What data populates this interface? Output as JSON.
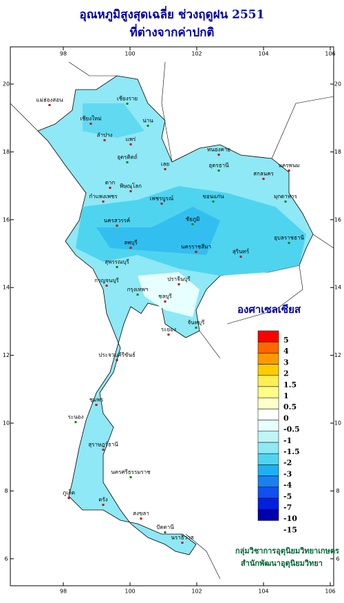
{
  "title": [
    "อุณหภูมิสูงสุดเฉลี่ย ช่วงฤดูฝน 2551",
    "ที่ต่างจากค่าปกติ"
  ],
  "map": {
    "lon_ticks": [
      98,
      100,
      102,
      104,
      106
    ],
    "lat_ticks": [
      20,
      18,
      16,
      14,
      12,
      10,
      8,
      6
    ],
    "places": [
      "เชียงราย",
      "แม่ฮ่องสอน",
      "เชียงใหม่",
      "น่าน",
      "ลำปาง",
      "แพร่",
      "อุตรดิตถ์",
      "เลย",
      "หนองคาย",
      "อุดรธานี",
      "นครพนม",
      "สกลนคร",
      "มุกดาหาร",
      "ตาก",
      "พิษณุโลก",
      "ขอนแก่น",
      "กำแพงเพชร",
      "เพชรบูรณ์",
      "ชัยภูมิ",
      "นครสวรรค์",
      "นครราชสีมา",
      "อุบลราชธานี",
      "สุรินทร์",
      "ลพบุรี",
      "สุพรรณบุรี",
      "กาญจนบุรี",
      "ปราจีนบุรี",
      "กรุงเทพฯ",
      "ชลบุรี",
      "ระยอง",
      "จันทบุรี",
      "ประจวบคีรีขันธ์",
      "ชุมพร",
      "ระนอง",
      "สุราษฎร์ธานี",
      "ภูเก็ต",
      "นครศรีธรรมราช",
      "ตรัง",
      "สงขลา",
      "ปัตตานี",
      "นราธิวาส"
    ]
  },
  "legend": {
    "title": "องศาเซลเซียส",
    "labels": [
      5,
      4,
      3,
      2,
      1.5,
      1,
      0.5,
      0,
      -0.5,
      -1,
      -1.5,
      -2,
      -3,
      -4,
      -5,
      -7,
      -10,
      -15
    ],
    "colors": [
      "#ff0000",
      "#ff6600",
      "#ff9900",
      "#ffcc00",
      "#ffee55",
      "#ffff88",
      "#ffffcc",
      "#ffffff",
      "#e8ffff",
      "#bff5f5",
      "#8ee8f5",
      "#4fd4f0",
      "#1fb0f0",
      "#1a80f0",
      "#1050f0",
      "#0020e0",
      "#0000b0"
    ]
  },
  "credits": [
    "กลุ่มวิชาการอุตุนิยมวิทยาเกษตร",
    "สำนักพัฒนาอุตุนิยมวิทยา"
  ]
}
